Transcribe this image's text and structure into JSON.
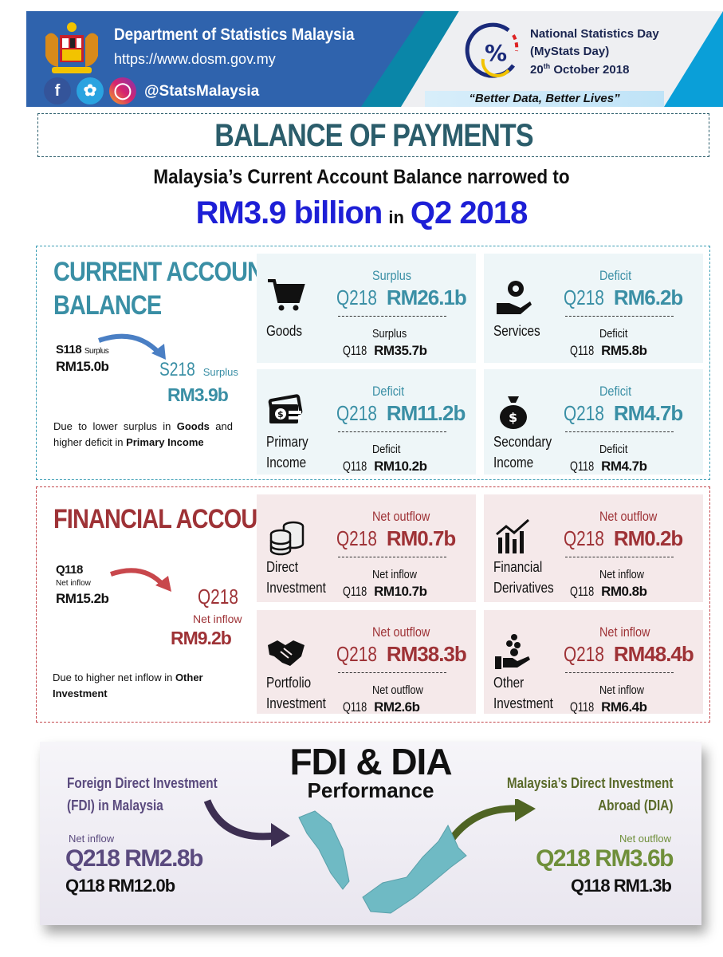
{
  "header": {
    "org": "Department of Statistics Malaysia",
    "url": "https://www.dosm.gov.my",
    "social_handle": "@StatsMalaysia",
    "social_icons": [
      "facebook-icon",
      "twitter-icon",
      "instagram-icon"
    ],
    "event_line1": "National Statistics Day",
    "event_line2": "(MyStats Day)",
    "event_date_day": "20",
    "event_date_sup": "th",
    "event_date_rest": "October 2018",
    "slogan": "“Better Data, Better Lives”"
  },
  "title": "BALANCE OF PAYMENTS",
  "headline": {
    "line1": "Malaysia’s Current Account Balance narrowed to",
    "amount": "RM3.9 billion",
    "in": "in",
    "period": "Q2 2018"
  },
  "colors": {
    "teal": "#3a8fa5",
    "red": "#9e3236",
    "blue": "#1d1fd6",
    "purple": "#5a4a7e",
    "green": "#6f8f3a"
  },
  "current_account": {
    "title1": "CURRENT ACCOUNT",
    "title2": "BALANCE",
    "prev_period": "S118",
    "prev_label": "Surplus",
    "prev_value": "RM15.0b",
    "curr_period": "S218",
    "curr_label": "Surplus",
    "curr_value": "RM3.9b",
    "note_pre": "Due to lower surplus in ",
    "note_b1": "Goods",
    "note_mid": " and higher deficit in ",
    "note_b2": "Primary Income",
    "cards": [
      {
        "name": "Goods",
        "icon": "cart",
        "q2_status": "Surplus",
        "q2_period": "Q218",
        "q2_value": "RM26.1b",
        "q1_status": "Surplus",
        "q1_period": "Q118",
        "q1_value": "RM35.7b"
      },
      {
        "name": "Services",
        "icon": "gear-hand",
        "q2_status": "Deficit",
        "q2_period": "Q218",
        "q2_value": "RM6.2b",
        "q1_status": "Deficit",
        "q1_period": "Q118",
        "q1_value": "RM5.8b"
      },
      {
        "name": "Primary Income",
        "icon": "money",
        "q2_status": "Deficit",
        "q2_period": "Q218",
        "q2_value": "RM11.2b",
        "q1_status": "Deficit",
        "q1_period": "Q118",
        "q1_value": "RM10.2b"
      },
      {
        "name": "Secondary Income",
        "icon": "money-bag",
        "q2_status": "Deficit",
        "q2_period": "Q218",
        "q2_value": "RM4.7b",
        "q1_status": "Deficit",
        "q1_period": "Q118",
        "q1_value": "RM4.7b"
      }
    ]
  },
  "financial_account": {
    "title": "FINANCIAL ACCOUNT",
    "prev_period": "Q118",
    "prev_label": "Net inflow",
    "prev_value": "RM15.2b",
    "curr_period": "Q218",
    "curr_label": "Net inflow",
    "curr_value": "RM9.2b",
    "note_pre": "Due to higher net inflow in ",
    "note_b1": "Other Investment",
    "cards": [
      {
        "name": "Direct Investment",
        "icon": "coins",
        "q2_status": "Net outflow",
        "q2_period": "Q218",
        "q2_value": "RM0.7b",
        "q1_status": "Net inflow",
        "q1_period": "Q118",
        "q1_value": "RM10.7b"
      },
      {
        "name": "Financial Derivatives",
        "icon": "bar-chart",
        "q2_status": "Net outflow",
        "q2_period": "Q218",
        "q2_value": "RM0.2b",
        "q1_status": "Net inflow",
        "q1_period": "Q118",
        "q1_value": "RM0.8b"
      },
      {
        "name": "Portfolio Investment",
        "icon": "handshake",
        "q2_status": "Net outflow",
        "q2_period": "Q218",
        "q2_value": "RM38.3b",
        "q1_status": "Net outflow",
        "q1_period": "Q118",
        "q1_value": "RM2.6b"
      },
      {
        "name": "Other Investment",
        "icon": "hand-coins",
        "q2_status": "Net inflow",
        "q2_period": "Q218",
        "q2_value": "RM48.4b",
        "q1_status": "Net inflow",
        "q1_period": "Q118",
        "q1_value": "RM6.4b"
      }
    ]
  },
  "fdi_dia": {
    "title": "FDI & DIA",
    "subtitle": "Performance",
    "fdi_label1": "Foreign Direct Investment",
    "fdi_label2": "(FDI) in Malaysia",
    "fdi_status": "Net inflow",
    "fdi_q2": "Q218 RM2.8b",
    "fdi_q1": "Q118 RM12.0b",
    "dia_label1": "Malaysia’s Direct Investment",
    "dia_label2": "Abroad (DIA)",
    "dia_status": "Net outflow",
    "dia_q2": "Q218 RM3.6b",
    "dia_q1": "Q118 RM1.3b"
  }
}
